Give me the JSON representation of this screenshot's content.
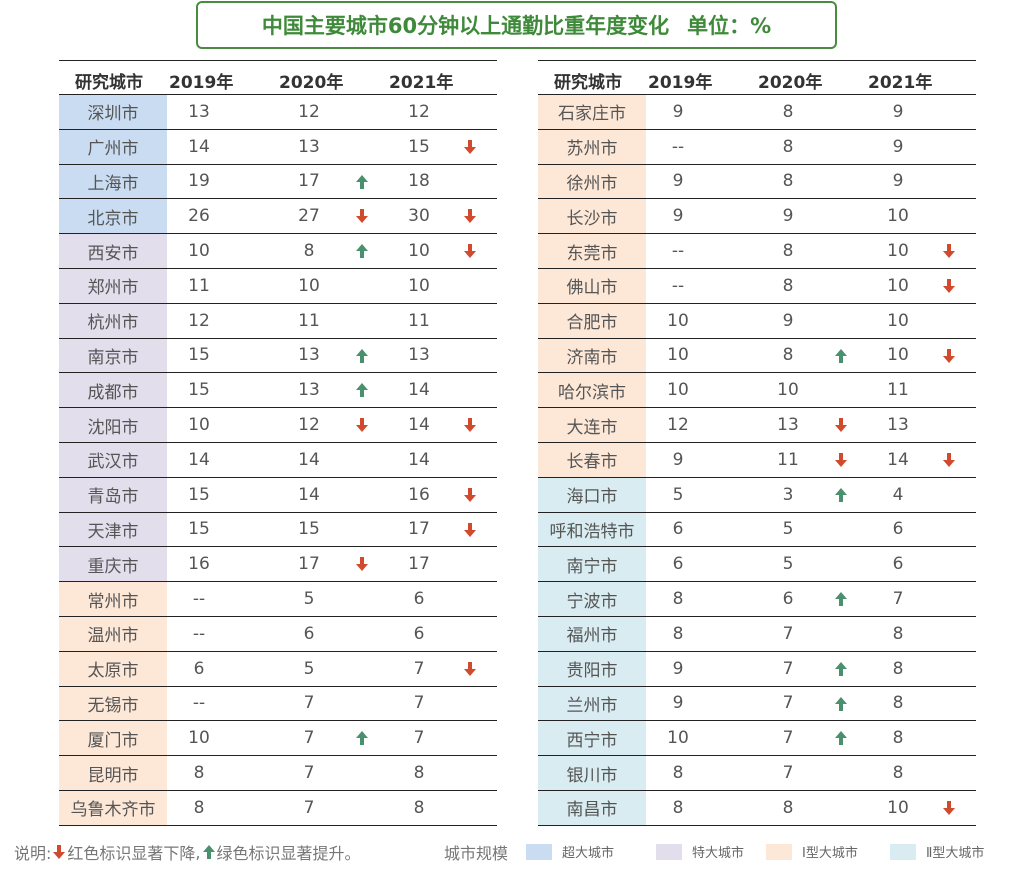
{
  "title": "中国主要城市60分钟以上通勤比重年度变化",
  "unit": "单位：%",
  "headers": [
    "研究城市",
    "2019年",
    "2020年",
    "2021年"
  ],
  "colors": {
    "super": "#c9dcf1",
    "mega": "#e2deec",
    "type1": "#fde8d8",
    "type2": "#d9ecf1",
    "down": "#d14a2e",
    "up": "#4a8f6e"
  },
  "chart_data": {
    "type": "table",
    "title": "中国主要城市60分钟以上通勤比重年度变化",
    "unit": "单位：%",
    "columns": [
      "研究城市",
      "2019年",
      "2020年",
      "2021年"
    ],
    "left_rows": [
      {
        "city": "深圳市",
        "tier": "super",
        "y2019": "13",
        "y2020": "12",
        "t2020": "",
        "y2021": "12",
        "t2021": ""
      },
      {
        "city": "广州市",
        "tier": "super",
        "y2019": "14",
        "y2020": "13",
        "t2020": "",
        "y2021": "15",
        "t2021": "down"
      },
      {
        "city": "上海市",
        "tier": "super",
        "y2019": "19",
        "y2020": "17",
        "t2020": "up",
        "y2021": "18",
        "t2021": ""
      },
      {
        "city": "北京市",
        "tier": "super",
        "y2019": "26",
        "y2020": "27",
        "t2020": "down",
        "y2021": "30",
        "t2021": "down"
      },
      {
        "city": "西安市",
        "tier": "mega",
        "y2019": "10",
        "y2020": "8",
        "t2020": "up",
        "y2021": "10",
        "t2021": "down"
      },
      {
        "city": "郑州市",
        "tier": "mega",
        "y2019": "11",
        "y2020": "10",
        "t2020": "",
        "y2021": "10",
        "t2021": ""
      },
      {
        "city": "杭州市",
        "tier": "mega",
        "y2019": "12",
        "y2020": "11",
        "t2020": "",
        "y2021": "11",
        "t2021": ""
      },
      {
        "city": "南京市",
        "tier": "mega",
        "y2019": "15",
        "y2020": "13",
        "t2020": "up",
        "y2021": "13",
        "t2021": ""
      },
      {
        "city": "成都市",
        "tier": "mega",
        "y2019": "15",
        "y2020": "13",
        "t2020": "up",
        "y2021": "14",
        "t2021": ""
      },
      {
        "city": "沈阳市",
        "tier": "mega",
        "y2019": "10",
        "y2020": "12",
        "t2020": "down",
        "y2021": "14",
        "t2021": "down"
      },
      {
        "city": "武汉市",
        "tier": "mega",
        "y2019": "14",
        "y2020": "14",
        "t2020": "",
        "y2021": "14",
        "t2021": ""
      },
      {
        "city": "青岛市",
        "tier": "mega",
        "y2019": "15",
        "y2020": "14",
        "t2020": "",
        "y2021": "16",
        "t2021": "down"
      },
      {
        "city": "天津市",
        "tier": "mega",
        "y2019": "15",
        "y2020": "15",
        "t2020": "",
        "y2021": "17",
        "t2021": "down"
      },
      {
        "city": "重庆市",
        "tier": "mega",
        "y2019": "16",
        "y2020": "17",
        "t2020": "down",
        "y2021": "17",
        "t2021": ""
      },
      {
        "city": "常州市",
        "tier": "type1",
        "y2019": "--",
        "y2020": "5",
        "t2020": "",
        "y2021": "6",
        "t2021": ""
      },
      {
        "city": "温州市",
        "tier": "type1",
        "y2019": "--",
        "y2020": "6",
        "t2020": "",
        "y2021": "6",
        "t2021": ""
      },
      {
        "city": "太原市",
        "tier": "type1",
        "y2019": "6",
        "y2020": "5",
        "t2020": "",
        "y2021": "7",
        "t2021": "down"
      },
      {
        "city": "无锡市",
        "tier": "type1",
        "y2019": "--",
        "y2020": "7",
        "t2020": "",
        "y2021": "7",
        "t2021": ""
      },
      {
        "city": "厦门市",
        "tier": "type1",
        "y2019": "10",
        "y2020": "7",
        "t2020": "up",
        "y2021": "7",
        "t2021": ""
      },
      {
        "city": "昆明市",
        "tier": "type1",
        "y2019": "8",
        "y2020": "7",
        "t2020": "",
        "y2021": "8",
        "t2021": ""
      },
      {
        "city": "乌鲁木齐市",
        "tier": "type1",
        "y2019": "8",
        "y2020": "7",
        "t2020": "",
        "y2021": "8",
        "t2021": ""
      }
    ],
    "right_rows": [
      {
        "city": "石家庄市",
        "tier": "type1",
        "y2019": "9",
        "y2020": "8",
        "t2020": "",
        "y2021": "9",
        "t2021": ""
      },
      {
        "city": "苏州市",
        "tier": "type1",
        "y2019": "--",
        "y2020": "8",
        "t2020": "",
        "y2021": "9",
        "t2021": ""
      },
      {
        "city": "徐州市",
        "tier": "type1",
        "y2019": "9",
        "y2020": "8",
        "t2020": "",
        "y2021": "9",
        "t2021": ""
      },
      {
        "city": "长沙市",
        "tier": "type1",
        "y2019": "9",
        "y2020": "9",
        "t2020": "",
        "y2021": "10",
        "t2021": ""
      },
      {
        "city": "东莞市",
        "tier": "type1",
        "y2019": "--",
        "y2020": "8",
        "t2020": "",
        "y2021": "10",
        "t2021": "down"
      },
      {
        "city": "佛山市",
        "tier": "type1",
        "y2019": "--",
        "y2020": "8",
        "t2020": "",
        "y2021": "10",
        "t2021": "down"
      },
      {
        "city": "合肥市",
        "tier": "type1",
        "y2019": "10",
        "y2020": "9",
        "t2020": "",
        "y2021": "10",
        "t2021": ""
      },
      {
        "city": "济南市",
        "tier": "type1",
        "y2019": "10",
        "y2020": "8",
        "t2020": "up",
        "y2021": "10",
        "t2021": "down"
      },
      {
        "city": "哈尔滨市",
        "tier": "type1",
        "y2019": "10",
        "y2020": "10",
        "t2020": "",
        "y2021": "11",
        "t2021": ""
      },
      {
        "city": "大连市",
        "tier": "type1",
        "y2019": "12",
        "y2020": "13",
        "t2020": "down",
        "y2021": "13",
        "t2021": ""
      },
      {
        "city": "长春市",
        "tier": "type1",
        "y2019": "9",
        "y2020": "11",
        "t2020": "down",
        "y2021": "14",
        "t2021": "down"
      },
      {
        "city": "海口市",
        "tier": "type2",
        "y2019": "5",
        "y2020": "3",
        "t2020": "up",
        "y2021": "4",
        "t2021": ""
      },
      {
        "city": "呼和浩特市",
        "tier": "type2",
        "y2019": "6",
        "y2020": "5",
        "t2020": "",
        "y2021": "6",
        "t2021": ""
      },
      {
        "city": "南宁市",
        "tier": "type2",
        "y2019": "6",
        "y2020": "5",
        "t2020": "",
        "y2021": "6",
        "t2021": ""
      },
      {
        "city": "宁波市",
        "tier": "type2",
        "y2019": "8",
        "y2020": "6",
        "t2020": "up",
        "y2021": "7",
        "t2021": ""
      },
      {
        "city": "福州市",
        "tier": "type2",
        "y2019": "8",
        "y2020": "7",
        "t2020": "",
        "y2021": "8",
        "t2021": ""
      },
      {
        "city": "贵阳市",
        "tier": "type2",
        "y2019": "9",
        "y2020": "7",
        "t2020": "up",
        "y2021": "8",
        "t2021": ""
      },
      {
        "city": "兰州市",
        "tier": "type2",
        "y2019": "9",
        "y2020": "7",
        "t2020": "up",
        "y2021": "8",
        "t2021": ""
      },
      {
        "city": "西宁市",
        "tier": "type2",
        "y2019": "10",
        "y2020": "7",
        "t2020": "up",
        "y2021": "8",
        "t2021": ""
      },
      {
        "city": "银川市",
        "tier": "type2",
        "y2019": "8",
        "y2020": "7",
        "t2020": "",
        "y2021": "8",
        "t2021": ""
      },
      {
        "city": "南昌市",
        "tier": "type2",
        "y2019": "8",
        "y2020": "8",
        "t2020": "",
        "y2021": "10",
        "t2021": "down"
      }
    ]
  },
  "legend": {
    "note_prefix": "说明:",
    "down_text": "红色标识显著下降",
    "sep": ",",
    "up_text": "绿色标识显著提升。",
    "scale_label": "城市规模",
    "items": [
      {
        "tier": "super",
        "label": "超大城市"
      },
      {
        "tier": "mega",
        "label": "特大城市"
      },
      {
        "tier": "type1",
        "label": "Ⅰ型大城市"
      },
      {
        "tier": "type2",
        "label": "Ⅱ型大城市"
      }
    ]
  }
}
